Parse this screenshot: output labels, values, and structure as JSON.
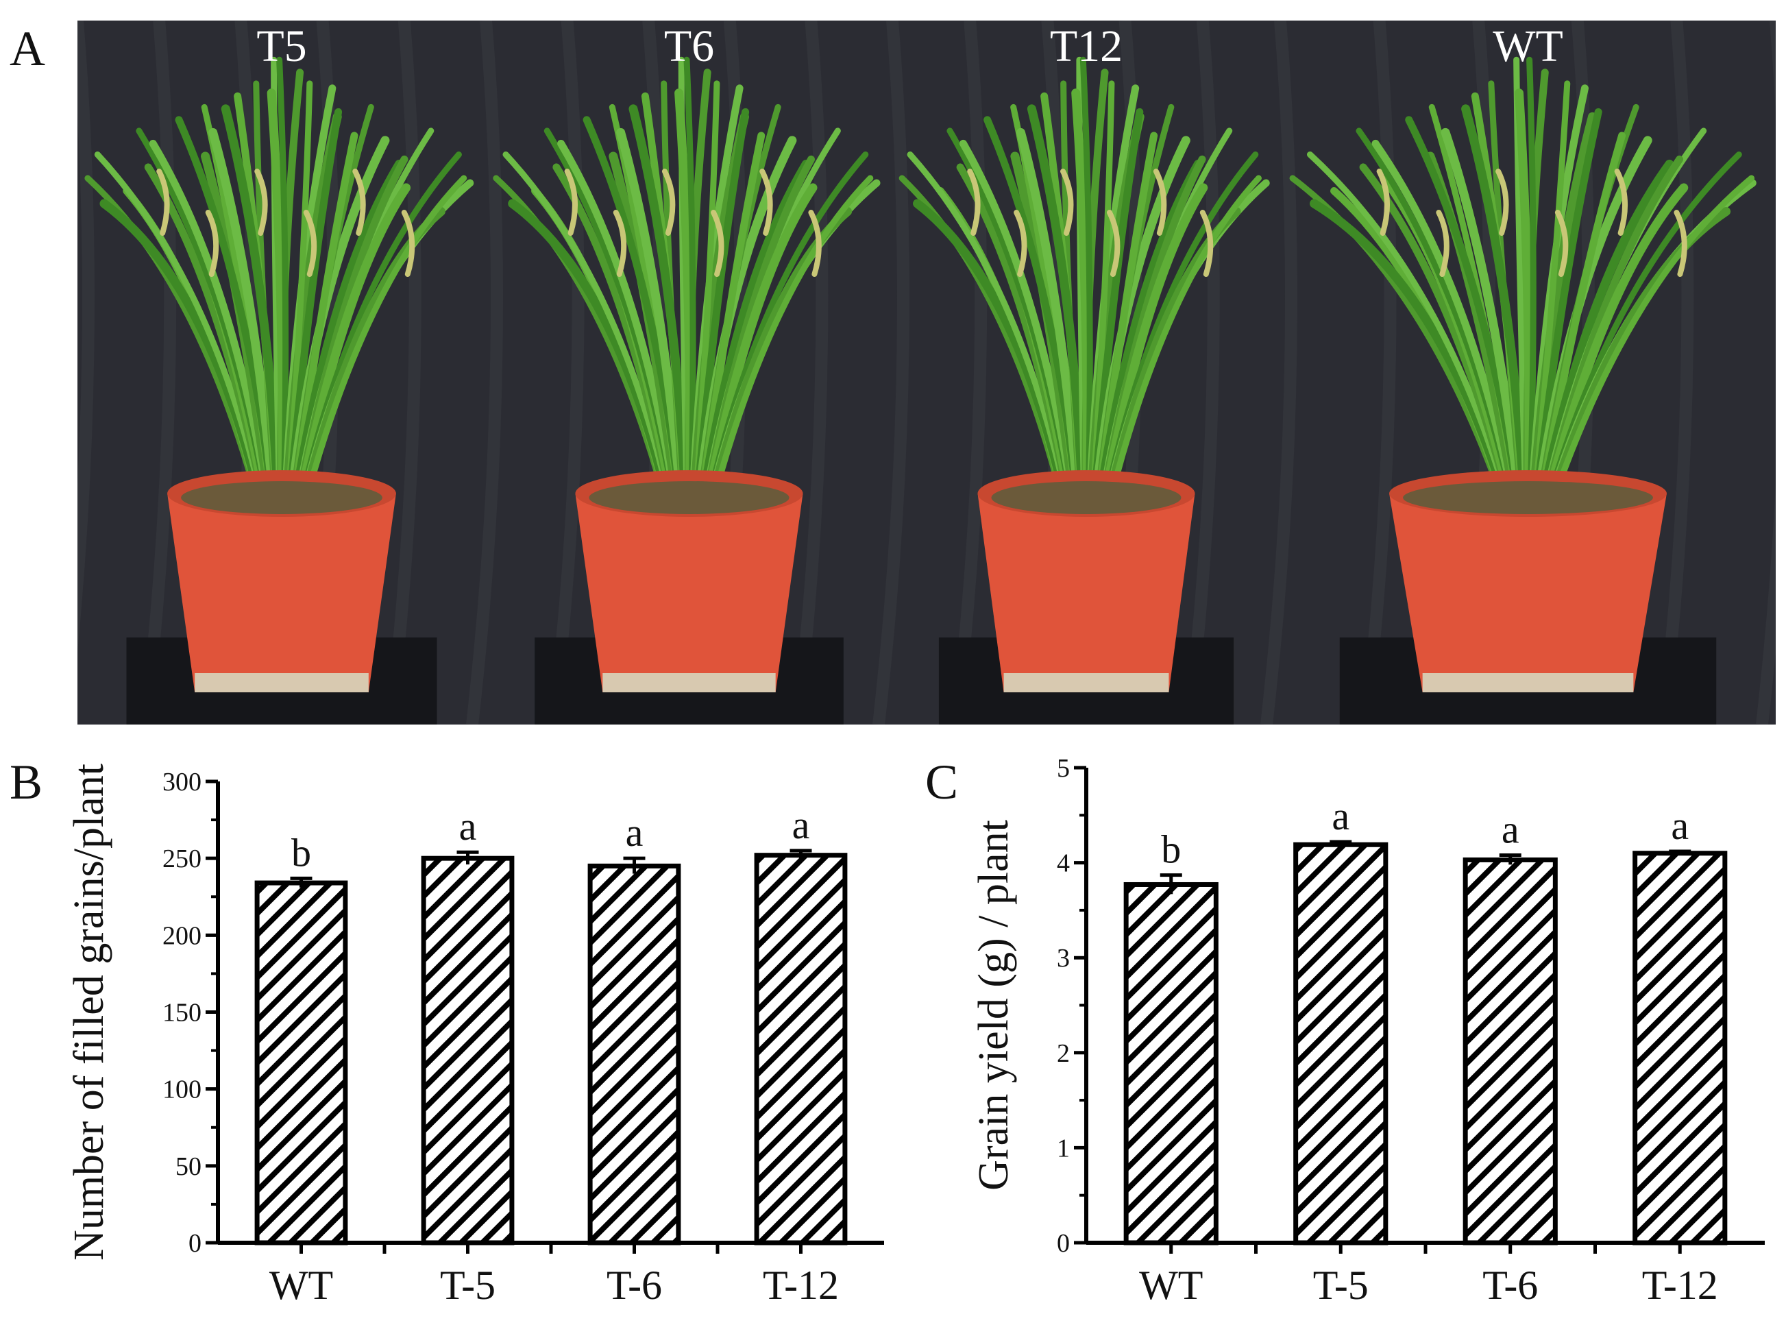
{
  "panels": {
    "a_letter": "A",
    "b_letter": "B",
    "c_letter": "C"
  },
  "photos": [
    {
      "label": "T5"
    },
    {
      "label": "T6"
    },
    {
      "label": "T12"
    },
    {
      "label": "WT"
    }
  ],
  "colors": {
    "background_cloth": "#2b2c33",
    "leaf": "#4f9a2e",
    "pot": "#e0543a",
    "bar_stroke": "#000000"
  },
  "chart_data": [
    {
      "type": "bar",
      "panel": "B",
      "categories": [
        "WT",
        "T-5",
        "T-6",
        "T-12"
      ],
      "values": [
        234,
        250,
        245,
        252
      ],
      "errors": [
        3,
        4,
        5,
        3
      ],
      "significance": [
        "b",
        "a",
        "a",
        "a"
      ],
      "ylabel": "Number of filled grains/plant",
      "ylim": [
        0,
        300
      ],
      "yticks": [
        0,
        50,
        100,
        150,
        200,
        250,
        300
      ],
      "pattern": "diagonal-hatch",
      "grid": false
    },
    {
      "type": "bar",
      "panel": "C",
      "categories": [
        "WT",
        "T-5",
        "T-6",
        "T-12"
      ],
      "values": [
        3.77,
        4.19,
        4.03,
        4.1
      ],
      "errors": [
        0.1,
        0.03,
        0.05,
        0.02
      ],
      "significance": [
        "b",
        "a",
        "a",
        "a"
      ],
      "ylabel": "Grain yield (g) / plant",
      "ylim": [
        0,
        5
      ],
      "yticks": [
        0,
        1,
        2,
        3,
        4,
        5
      ],
      "pattern": "diagonal-hatch",
      "grid": false
    }
  ]
}
